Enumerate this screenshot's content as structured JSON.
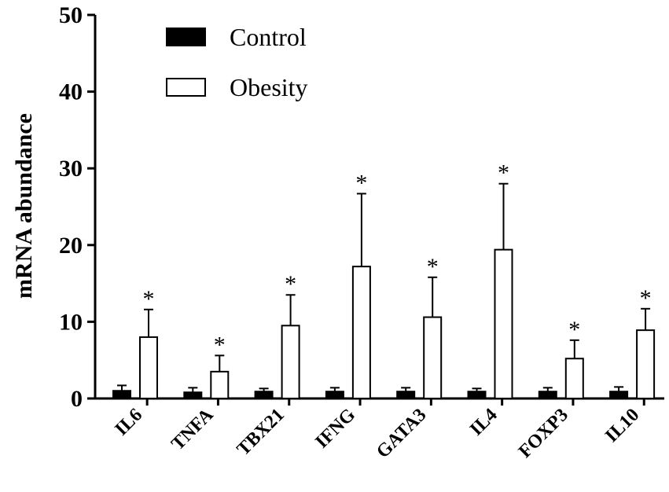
{
  "chart_data": {
    "type": "bar",
    "title": "",
    "xlabel": "",
    "ylabel": "mRNA abundance",
    "ylim": [
      0,
      50
    ],
    "yticks": [
      0,
      10,
      20,
      30,
      40,
      50
    ],
    "categories": [
      "IL6",
      "TNFA",
      "TBX21",
      "IFNG",
      "GATA3",
      "IL4",
      "FOXP3",
      "IL10"
    ],
    "series": [
      {
        "name": "Control",
        "fill": "#000000",
        "values": [
          1.0,
          0.8,
          0.9,
          0.9,
          0.9,
          0.9,
          0.9,
          0.9
        ],
        "errors": [
          0.7,
          0.6,
          0.4,
          0.5,
          0.5,
          0.4,
          0.5,
          0.6
        ]
      },
      {
        "name": "Obesity",
        "fill": "#ffffff",
        "values": [
          8.0,
          3.5,
          9.5,
          17.2,
          10.6,
          19.4,
          5.2,
          8.9
        ],
        "errors": [
          3.6,
          2.1,
          4.0,
          9.5,
          5.2,
          8.6,
          2.4,
          2.8
        ]
      }
    ],
    "significance": [
      "*",
      "*",
      "*",
      "*",
      "*",
      "*",
      "*",
      "*"
    ],
    "legend_position": "top-left",
    "grid": false
  }
}
